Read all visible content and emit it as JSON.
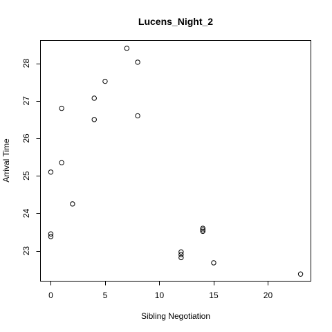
{
  "chart_data": {
    "type": "scatter",
    "title": "Lucens_Night_2",
    "xlabel": "Sibling Negotiation",
    "ylabel": "Arrival Time",
    "xlim": [
      -0.92,
      23.92
    ],
    "ylim": [
      22.2,
      28.6
    ],
    "x_ticks": [
      0,
      5,
      10,
      15,
      20
    ],
    "y_ticks": [
      23,
      24,
      25,
      26,
      27,
      28
    ],
    "grid": false,
    "marker": "open-circle",
    "points": [
      {
        "x": 0,
        "y": 25.1
      },
      {
        "x": 0,
        "y": 23.45
      },
      {
        "x": 0,
        "y": 23.38
      },
      {
        "x": 1,
        "y": 26.8
      },
      {
        "x": 1,
        "y": 25.35
      },
      {
        "x": 2,
        "y": 24.25
      },
      {
        "x": 4,
        "y": 27.07
      },
      {
        "x": 4,
        "y": 26.5
      },
      {
        "x": 5,
        "y": 27.52
      },
      {
        "x": 7,
        "y": 28.4
      },
      {
        "x": 8,
        "y": 28.03
      },
      {
        "x": 8,
        "y": 26.6
      },
      {
        "x": 12,
        "y": 22.97
      },
      {
        "x": 12,
        "y": 22.9
      },
      {
        "x": 12,
        "y": 22.82
      },
      {
        "x": 14,
        "y": 23.6
      },
      {
        "x": 14,
        "y": 23.56
      },
      {
        "x": 14,
        "y": 23.52
      },
      {
        "x": 15,
        "y": 22.68
      },
      {
        "x": 23,
        "y": 22.38
      }
    ]
  }
}
